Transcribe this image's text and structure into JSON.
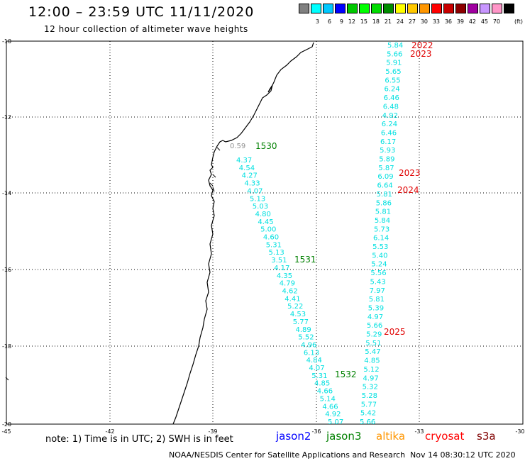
{
  "header": {
    "title": "12:00 – 23:59 UTC 11/11/2020",
    "subtitle": "12 hour collection of altimeter wave heights"
  },
  "color_scale": {
    "unit_label": "(ft)",
    "boxes": [
      {
        "color": "#808080",
        "label": ""
      },
      {
        "color": "#00ffff",
        "label": "3"
      },
      {
        "color": "#00c8ff",
        "label": "6"
      },
      {
        "color": "#0000ff",
        "label": "9"
      },
      {
        "color": "#00c800",
        "label": "12"
      },
      {
        "color": "#00ff00",
        "label": "15"
      },
      {
        "color": "#00dc00",
        "label": "18"
      },
      {
        "color": "#008c00",
        "label": "21"
      },
      {
        "color": "#ffff00",
        "label": "24"
      },
      {
        "color": "#ffc800",
        "label": "27"
      },
      {
        "color": "#ff9600",
        "label": "30"
      },
      {
        "color": "#ff0000",
        "label": "33"
      },
      {
        "color": "#c80000",
        "label": "36"
      },
      {
        "color": "#8c0000",
        "label": "39"
      },
      {
        "color": "#a000a0",
        "label": "42"
      },
      {
        "color": "#c896ff",
        "label": "45"
      },
      {
        "color": "#ff96c8",
        "label": "70"
      },
      {
        "color": "#000000",
        "label": ""
      }
    ]
  },
  "axes": {
    "lat_ticks": [
      "-10",
      "-12",
      "-14",
      "-16",
      "-18",
      "-20"
    ],
    "lon_ticks": [
      "-45",
      "-42",
      "-39",
      "-36",
      "-33",
      "-30"
    ]
  },
  "track_west": {
    "color": "#00e0e0",
    "values": [
      "0.59",
      "4.37",
      "4.54",
      "4.27",
      "4.33",
      "4.07",
      "5.13",
      "5.03",
      "4.80",
      "4.45",
      "5.00",
      "4.60",
      "5.31",
      "5.13",
      "3.51",
      "4.17",
      "4.35",
      "4.79",
      "4.62",
      "4.41",
      "5.22",
      "4.53",
      "5.77",
      "4.89",
      "5.52",
      "4.96",
      "6.13",
      "4.84",
      "4.07",
      "5.31",
      "4.85",
      "4.66",
      "5.14",
      "4.66",
      "4.92",
      "5.07"
    ]
  },
  "track_east": {
    "color": "#00e0e0",
    "values": [
      "5.84",
      "5.66",
      "5.91",
      "5.65",
      "6.55",
      "6.24",
      "6.46",
      "6.48",
      "4.92",
      "6.24",
      "6.46",
      "6.17",
      "5.93",
      "5.89",
      "5.87",
      "6.09",
      "6.64",
      "5.81",
      "5.86",
      "5.81",
      "5.84",
      "5.73",
      "6.14",
      "5.53",
      "5.40",
      "5.24",
      "5.56",
      "5.43",
      "7.97",
      "5.81",
      "5.39",
      "4.97",
      "5.66",
      "5.29",
      "5.51",
      "5.47",
      "4.85",
      "5.12",
      "4.97",
      "5.32",
      "5.28",
      "5.77",
      "5.42",
      "5.66"
    ]
  },
  "time_labels_west": [
    {
      "text": "1530",
      "color": "#008000"
    },
    {
      "text": "1531",
      "color": "#008000"
    },
    {
      "text": "1532",
      "color": "#008000"
    }
  ],
  "time_labels_east": [
    {
      "text": "2022",
      "color": "#e00000"
    },
    {
      "text": "2023",
      "color": "#e00000"
    },
    {
      "text": "2023",
      "color": "#e00000"
    },
    {
      "text": "2024",
      "color": "#e00000"
    },
    {
      "text": "2025",
      "color": "#e00000"
    }
  ],
  "footer": {
    "note": "note:  1) Time is in UTC;  2) SWH is in feet",
    "satellites": [
      {
        "name": "jason2",
        "color": "#0000ff"
      },
      {
        "name": "jason3",
        "color": "#008000"
      },
      {
        "name": "altika",
        "color": "#ff9600"
      },
      {
        "name": "cryosat",
        "color": "#ff0000"
      },
      {
        "name": "s3a",
        "color": "#800000"
      }
    ],
    "credit": "NOAA/NESDIS Center for Satellite Applications and Research",
    "timestamp": "Nov 14 08:30:12 UTC 2020"
  }
}
